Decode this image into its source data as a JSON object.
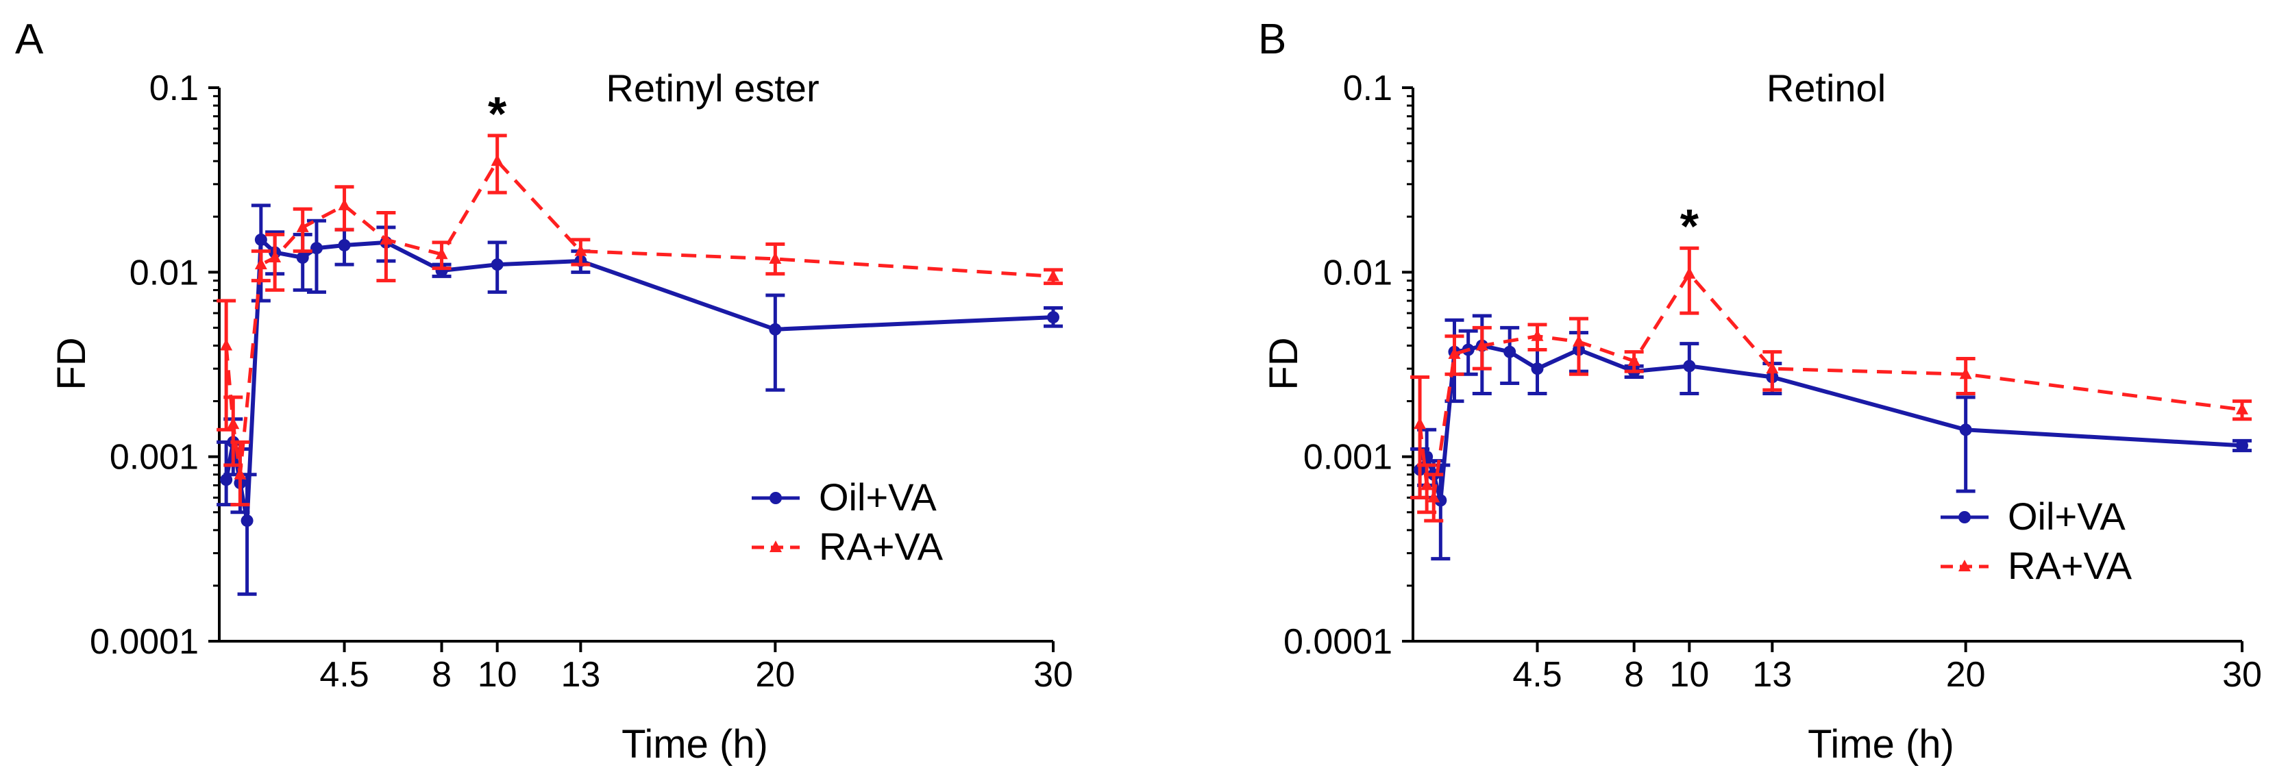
{
  "chart_data": [
    {
      "panel": "A",
      "type": "line",
      "title": "Retinyl ester",
      "xlabel": "Time (h)",
      "ylabel": "FD",
      "yscale": "log",
      "ylim": [
        0.0001,
        0.1
      ],
      "xlim": [
        0,
        30
      ],
      "xticks": [
        4.5,
        8,
        10,
        13,
        20,
        30
      ],
      "xtick_labels": [
        "4.5",
        "8",
        "10",
        "13",
        "20",
        "30"
      ],
      "yticks": [
        0.0001,
        0.001,
        0.01,
        0.1
      ],
      "ytick_labels": [
        "0.0001",
        "0.001",
        "0.01",
        "0.1"
      ],
      "legend": "bottom-right",
      "annotations": [
        {
          "text": "*",
          "x": 10
        }
      ],
      "series": [
        {
          "name": "Oil+VA",
          "color": "#1a1aa6",
          "style": "solid",
          "marker": "circle",
          "points": [
            {
              "x": 0.25,
              "y": 0.00075,
              "lo": 0.00055,
              "hi": 0.0012
            },
            {
              "x": 0.5,
              "y": 0.0012,
              "lo": 0.0008,
              "hi": 0.0016
            },
            {
              "x": 0.75,
              "y": 0.00072,
              "lo": 0.0005,
              "hi": 0.0011
            },
            {
              "x": 1,
              "y": 0.00045,
              "lo": 0.00018,
              "hi": 0.0008
            },
            {
              "x": 1.5,
              "y": 0.015,
              "lo": 0.007,
              "hi": 0.023
            },
            {
              "x": 2,
              "y": 0.0128,
              "lo": 0.0098,
              "hi": 0.0165
            },
            {
              "x": 3,
              "y": 0.012,
              "lo": 0.008,
              "hi": 0.016
            },
            {
              "x": 3.5,
              "y": 0.0135,
              "lo": 0.0078,
              "hi": 0.019
            },
            {
              "x": 4.5,
              "y": 0.014,
              "lo": 0.011,
              "hi": 0.017
            },
            {
              "x": 6,
              "y": 0.0145,
              "lo": 0.0115,
              "hi": 0.0175
            },
            {
              "x": 8,
              "y": 0.0102,
              "lo": 0.0095,
              "hi": 0.011
            },
            {
              "x": 10,
              "y": 0.011,
              "lo": 0.0078,
              "hi": 0.0145
            },
            {
              "x": 13,
              "y": 0.0115,
              "lo": 0.01,
              "hi": 0.013
            },
            {
              "x": 20,
              "y": 0.0049,
              "lo": 0.0023,
              "hi": 0.0075
            },
            {
              "x": 30,
              "y": 0.0057,
              "lo": 0.0051,
              "hi": 0.0064
            }
          ]
        },
        {
          "name": "RA+VA",
          "color": "#ff2020",
          "style": "dashed",
          "marker": "triangle",
          "points": [
            {
              "x": 0.25,
              "y": 0.004,
              "lo": 0.0014,
              "hi": 0.007
            },
            {
              "x": 0.5,
              "y": 0.0015,
              "lo": 0.0009,
              "hi": 0.0021
            },
            {
              "x": 0.75,
              "y": 0.0008,
              "lo": 0.00055,
              "hi": 0.0012
            },
            {
              "x": 1.5,
              "y": 0.011,
              "lo": 0.009,
              "hi": 0.013
            },
            {
              "x": 2,
              "y": 0.012,
              "lo": 0.008,
              "hi": 0.016
            },
            {
              "x": 3,
              "y": 0.0175,
              "lo": 0.013,
              "hi": 0.022
            },
            {
              "x": 4.5,
              "y": 0.023,
              "lo": 0.017,
              "hi": 0.029
            },
            {
              "x": 6,
              "y": 0.015,
              "lo": 0.009,
              "hi": 0.021
            },
            {
              "x": 8,
              "y": 0.0125,
              "lo": 0.0105,
              "hi": 0.0145
            },
            {
              "x": 10,
              "y": 0.04,
              "lo": 0.027,
              "hi": 0.055
            },
            {
              "x": 13,
              "y": 0.013,
              "lo": 0.011,
              "hi": 0.015
            },
            {
              "x": 20,
              "y": 0.0118,
              "lo": 0.0098,
              "hi": 0.0142
            },
            {
              "x": 30,
              "y": 0.0095,
              "lo": 0.0087,
              "hi": 0.0103
            }
          ]
        }
      ]
    },
    {
      "panel": "B",
      "type": "line",
      "title": "Retinol",
      "xlabel": "Time (h)",
      "ylabel": "FD",
      "yscale": "log",
      "ylim": [
        0.0001,
        0.1
      ],
      "xlim": [
        0,
        30
      ],
      "xticks": [
        4.5,
        8,
        10,
        13,
        20,
        30
      ],
      "xtick_labels": [
        "4.5",
        "8",
        "10",
        "13",
        "20",
        "30"
      ],
      "yticks": [
        0.0001,
        0.001,
        0.01,
        0.1
      ],
      "ytick_labels": [
        "0.0001",
        "0.001",
        "0.01",
        "0.1"
      ],
      "legend": "bottom-right",
      "annotations": [
        {
          "text": "*",
          "x": 10
        }
      ],
      "series": [
        {
          "name": "Oil+VA",
          "color": "#1a1aa6",
          "style": "solid",
          "marker": "circle",
          "points": [
            {
              "x": 0.25,
              "y": 0.00085,
              "lo": 0.0006,
              "hi": 0.0011
            },
            {
              "x": 0.5,
              "y": 0.001,
              "lo": 0.0007,
              "hi": 0.0014
            },
            {
              "x": 0.75,
              "y": 0.0008,
              "lo": 0.0006,
              "hi": 0.00095
            },
            {
              "x": 1,
              "y": 0.00058,
              "lo": 0.00028,
              "hi": 0.0009
            },
            {
              "x": 1.5,
              "y": 0.0037,
              "lo": 0.002,
              "hi": 0.0055
            },
            {
              "x": 2,
              "y": 0.0038,
              "lo": 0.0028,
              "hi": 0.0048
            },
            {
              "x": 2.5,
              "y": 0.004,
              "lo": 0.0022,
              "hi": 0.0058
            },
            {
              "x": 3.5,
              "y": 0.0037,
              "lo": 0.0025,
              "hi": 0.005
            },
            {
              "x": 4.5,
              "y": 0.003,
              "lo": 0.0022,
              "hi": 0.0038
            },
            {
              "x": 6,
              "y": 0.0038,
              "lo": 0.0029,
              "hi": 0.0047
            },
            {
              "x": 8,
              "y": 0.0029,
              "lo": 0.0027,
              "hi": 0.0031
            },
            {
              "x": 10,
              "y": 0.0031,
              "lo": 0.0022,
              "hi": 0.0041
            },
            {
              "x": 13,
              "y": 0.0027,
              "lo": 0.0022,
              "hi": 0.0032
            },
            {
              "x": 20,
              "y": 0.0014,
              "lo": 0.00065,
              "hi": 0.0021
            },
            {
              "x": 30,
              "y": 0.00115,
              "lo": 0.00108,
              "hi": 0.00122
            }
          ]
        },
        {
          "name": "RA+VA",
          "color": "#ff2020",
          "style": "dashed",
          "marker": "triangle",
          "points": [
            {
              "x": 0.25,
              "y": 0.0015,
              "lo": 0.0006,
              "hi": 0.0027
            },
            {
              "x": 0.5,
              "y": 0.0007,
              "lo": 0.0005,
              "hi": 0.0009
            },
            {
              "x": 0.75,
              "y": 0.0006,
              "lo": 0.00045,
              "hi": 0.0008
            },
            {
              "x": 1.5,
              "y": 0.0036,
              "lo": 0.0028,
              "hi": 0.0045
            },
            {
              "x": 2.5,
              "y": 0.004,
              "lo": 0.003,
              "hi": 0.005
            },
            {
              "x": 4.5,
              "y": 0.0045,
              "lo": 0.0038,
              "hi": 0.0052
            },
            {
              "x": 6,
              "y": 0.0042,
              "lo": 0.0028,
              "hi": 0.0056
            },
            {
              "x": 8,
              "y": 0.0033,
              "lo": 0.0029,
              "hi": 0.0037
            },
            {
              "x": 10,
              "y": 0.0098,
              "lo": 0.006,
              "hi": 0.0135
            },
            {
              "x": 13,
              "y": 0.003,
              "lo": 0.0023,
              "hi": 0.0037
            },
            {
              "x": 20,
              "y": 0.0028,
              "lo": 0.0022,
              "hi": 0.0034
            },
            {
              "x": 30,
              "y": 0.0018,
              "lo": 0.0016,
              "hi": 0.002
            }
          ]
        }
      ]
    }
  ]
}
